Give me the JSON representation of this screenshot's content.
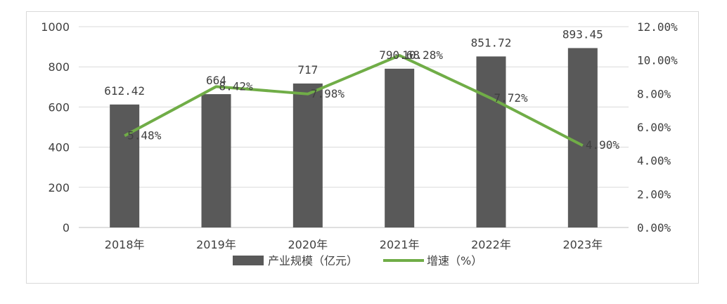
{
  "chart_data": {
    "type": "bar",
    "categories": [
      "2018年",
      "2019年",
      "2020年",
      "2021年",
      "2022年",
      "2023年"
    ],
    "series": [
      {
        "name": "产业规模（亿元）",
        "type": "bar",
        "axis": "left",
        "values": [
          612.42,
          664,
          717,
          790.68,
          851.72,
          893.45
        ],
        "labels": [
          "612.42",
          "664",
          "717",
          "790.68",
          "851.72",
          "893.45"
        ],
        "color": "#595959"
      },
      {
        "name": "增速（%）",
        "type": "line",
        "axis": "right",
        "values": [
          5.48,
          8.42,
          7.98,
          10.28,
          7.72,
          4.9
        ],
        "labels": [
          "5.48%",
          "8.42%",
          "7.98%",
          "10.28%",
          "7.72%",
          "4.90%"
        ],
        "color": "#70ad47"
      }
    ],
    "y_left": {
      "min": 0,
      "max": 1000,
      "ticks": [
        "0",
        "200",
        "400",
        "600",
        "800",
        "1000"
      ]
    },
    "y_right": {
      "min": 0,
      "max": 12,
      "ticks": [
        "0.00%",
        "2.00%",
        "4.00%",
        "6.00%",
        "8.00%",
        "10.00%",
        "12.00%"
      ]
    },
    "grid": true,
    "legend_position": "bottom"
  }
}
